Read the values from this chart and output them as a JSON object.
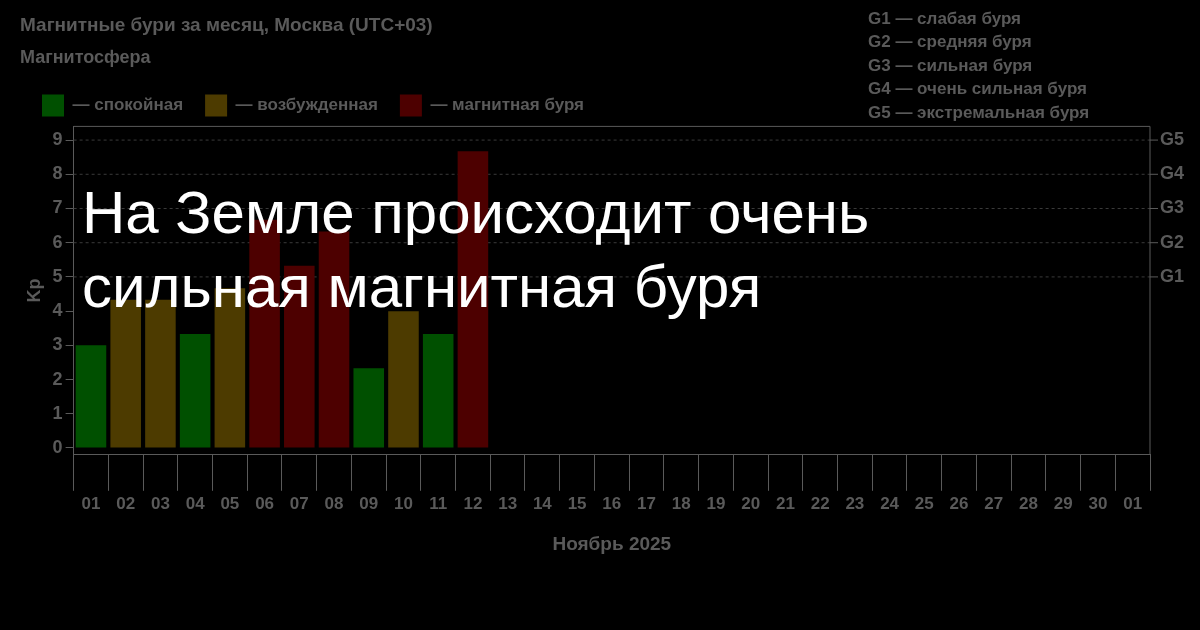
{
  "chart_data": {
    "type": "bar",
    "title": "На Земле происходит очень сильная магнитная буря",
    "subtitle": "Магнитные бури за месяц, Москва (UTC+03)",
    "xlabel": "Ноябрь 2025",
    "ylabel": "Kp",
    "legend_title": "Магнитосфера",
    "legend": "top left",
    "stacked": true,
    "categories": [
      "01",
      "02",
      "03",
      "04",
      "05",
      "06",
      "07",
      "08",
      "09",
      "10",
      "11",
      "12",
      "13",
      "14",
      "15",
      "16",
      "17",
      "18",
      "19",
      "20",
      "21",
      "22",
      "23",
      "24",
      "25",
      "26",
      "27",
      "28",
      "29",
      "30",
      "01"
    ],
    "series": [
      {
        "name": "— спокойная",
        "color": "#005000",
        "values": [
          3.0,
          null,
          null,
          3.33,
          null,
          null,
          null,
          null,
          2.33,
          null,
          3.33,
          null,
          null,
          null,
          null,
          null,
          null,
          null,
          null,
          null,
          null,
          null,
          null,
          null,
          null,
          null,
          null,
          null,
          null,
          null,
          null
        ]
      },
      {
        "name": "— возбужденная",
        "color": "#4d3b00",
        "values": [
          null,
          4.33,
          4.33,
          null,
          4.67,
          null,
          null,
          null,
          null,
          4.0,
          null,
          null,
          null,
          null,
          null,
          null,
          null,
          null,
          null,
          null,
          null,
          null,
          null,
          null,
          null,
          null,
          null,
          null,
          null,
          null,
          null
        ]
      },
      {
        "name": "— магнитная буря",
        "color": "#4d0000",
        "values": [
          null,
          null,
          null,
          null,
          null,
          6.67,
          5.33,
          6.33,
          null,
          null,
          null,
          8.67,
          null,
          null,
          null,
          null,
          null,
          null,
          null,
          null,
          null,
          null,
          null,
          null,
          null,
          null,
          null,
          null,
          null,
          null,
          null
        ]
      }
    ],
    "ylim": [
      -0.2,
      9.4
    ],
    "yticks": [
      0,
      1,
      2,
      3,
      4,
      5,
      6,
      7,
      8,
      9
    ],
    "ref_lines": [
      {
        "axis": "y",
        "value": 5,
        "label": "G1",
        "line_style": "dashed",
        "color": "#3a3a3a"
      },
      {
        "axis": "y",
        "value": 6,
        "label": "G2",
        "line_style": "dashed",
        "color": "#3a3a3a"
      },
      {
        "axis": "y",
        "value": 7,
        "label": "G3",
        "line_style": "dashed",
        "color": "#3a3a3a"
      },
      {
        "axis": "y",
        "value": 8,
        "label": "G4",
        "line_style": "dashed",
        "color": "#3a3a3a"
      },
      {
        "axis": "y",
        "value": 9,
        "label": "G5",
        "line_style": "dashed",
        "color": "#3a3a3a"
      }
    ],
    "annotations": [
      "G1 — слабая буря",
      "G2 — средняя буря",
      "G3 — сильная буря",
      "G4 — очень сильная буря",
      "G5 — экстремальная буря"
    ]
  }
}
